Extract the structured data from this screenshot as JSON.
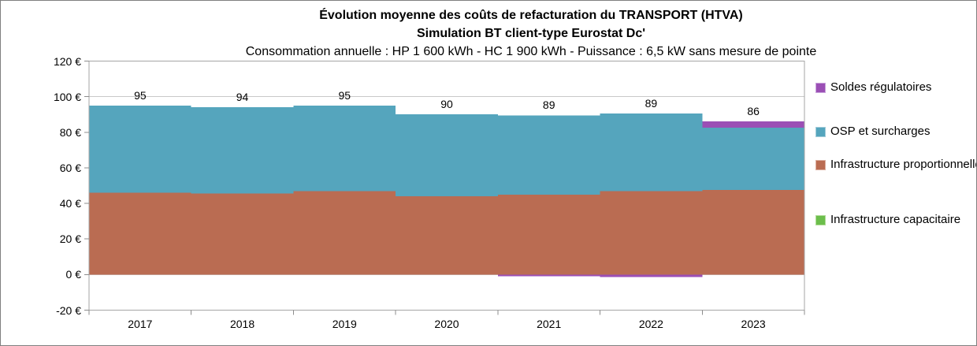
{
  "colors": {
    "grid": "#c9c9c9",
    "plot_border": "#a6a6a6",
    "tick": "#8c8c8c",
    "text": "#000000",
    "frame_border": "#7f7f7f"
  },
  "chart_data": {
    "type": "area",
    "subtype": "stacked-step-area",
    "title": "Évolution moyenne des coûts de refacturation du TRANSPORT (HTVA)",
    "subtitle": "Simulation BT client-type Eurostat Dc'",
    "subtitle2": "Consommation annuelle : HP 1 600 kWh - HC 1 900 kWh - Puissance : 6,5 kW sans mesure de pointe",
    "categories": [
      "2017",
      "2018",
      "2019",
      "2020",
      "2021",
      "2022",
      "2023"
    ],
    "series": [
      {
        "name": "Infrastructure capacitaire",
        "color": "#6cbe4c",
        "values": [
          0,
          0,
          0,
          0,
          0,
          0,
          0
        ]
      },
      {
        "name": "Infrastructure proportionnelle",
        "color": "#ba6c52",
        "values": [
          46,
          45.5,
          47,
          44,
          45,
          47,
          47.5
        ]
      },
      {
        "name": "OSP et surcharges",
        "color": "#55a5bd",
        "values": [
          49,
          48.5,
          48,
          46,
          44.5,
          43.5,
          35
        ]
      },
      {
        "name": "Soldes régulatoires",
        "color": "#9b4fb5",
        "values": [
          0,
          0,
          0,
          0,
          -0.5,
          -1.5,
          3.5
        ]
      }
    ],
    "totals_labels": [
      "95",
      "94",
      "95",
      "90",
      "89",
      "89",
      "86"
    ],
    "y_ticks": [
      120,
      100,
      80,
      60,
      40,
      20,
      0,
      -20
    ],
    "y_tick_labels": [
      "120 €",
      "100 €",
      "80 €",
      "60 €",
      "40 €",
      "20 €",
      "0 €",
      "-20 €"
    ],
    "ylim": [
      -20,
      120
    ],
    "grid": true,
    "legend_position": "right",
    "legend": [
      {
        "label": "Soldes régulatoires",
        "color": "#9b4fb5",
        "border": "#c9a3db"
      },
      {
        "label": "OSP et surcharges",
        "color": "#55a5bd",
        "border": "#a3ccd9"
      },
      {
        "label": "Infrastructure proportionnelle",
        "color": "#ba6c52",
        "border": "#dcae9e"
      },
      {
        "label": "Infrastructure capacitaire",
        "color": "#6cbe4c",
        "border": "#b0db97"
      }
    ]
  }
}
